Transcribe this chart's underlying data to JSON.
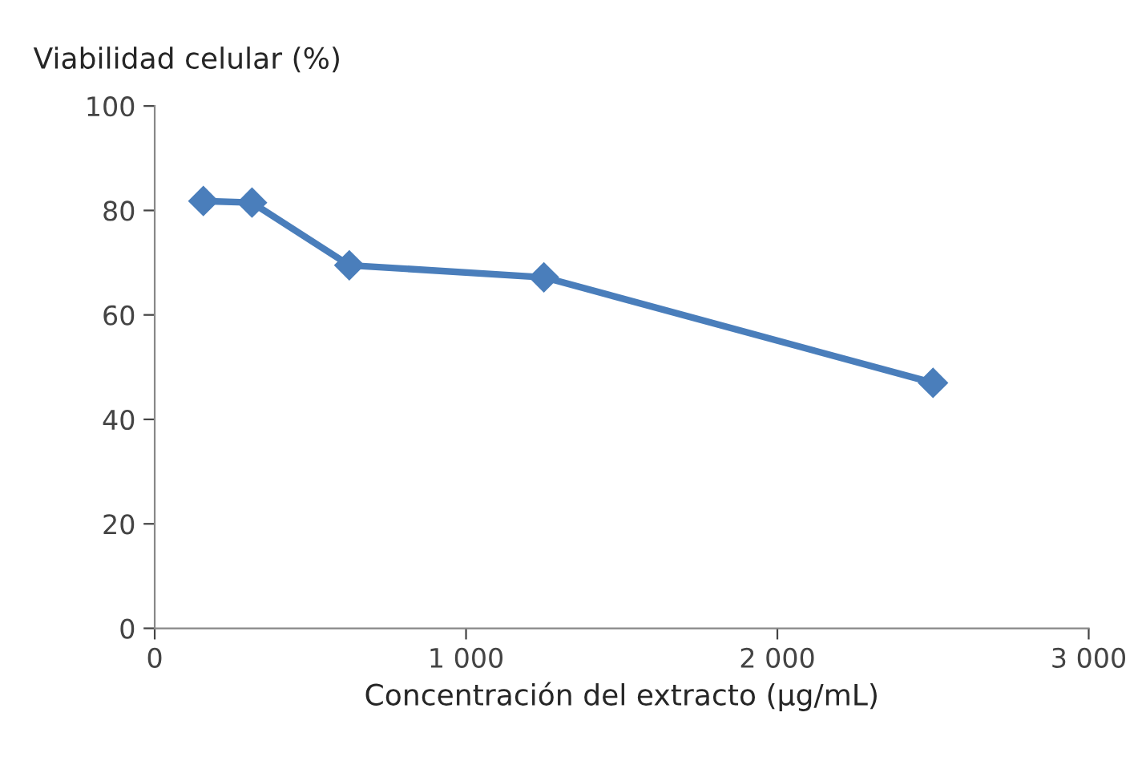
{
  "chart_data": {
    "type": "line",
    "xlabel": "Concentración del extracto (µg/mL)",
    "ylabel": "Viabilidad celular (%)",
    "x": [
      156.25,
      312.5,
      625,
      1250,
      2500
    ],
    "series": [
      {
        "color": "#4a7ebb",
        "values": [
          81.8,
          81.5,
          69.5,
          67.2,
          47
        ]
      }
    ],
    "xlim": [
      0,
      3000
    ],
    "xticks": [
      0,
      {
        "value": 1000,
        "label": "1 000"
      },
      {
        "value": 2000,
        "label": "2 000"
      },
      {
        "value": 3000,
        "label": "3 000"
      }
    ],
    "ylim": [
      0,
      100
    ],
    "yticks": [
      0,
      20,
      40,
      60,
      80,
      100
    ],
    "grid": false,
    "legend": false,
    "marker": "diamond",
    "line_style": "solid"
  }
}
